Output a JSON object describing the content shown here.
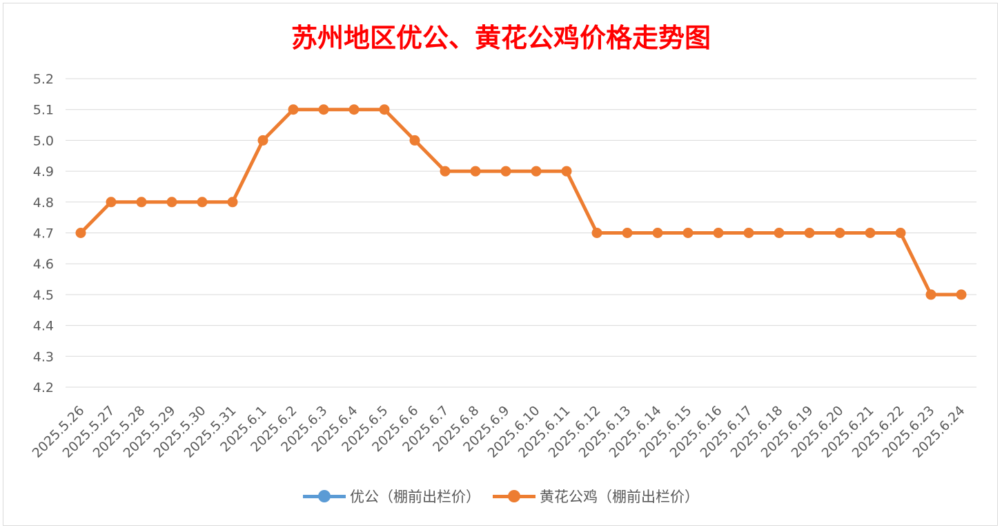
{
  "chart_data": {
    "type": "line",
    "title": "苏州地区优公、黄花公鸡价格走势图",
    "xlabel": "",
    "ylabel": "",
    "ylim": [
      4.2,
      5.2
    ],
    "yticks": [
      "5.2",
      "5.1",
      "5.0",
      "4.9",
      "4.8",
      "4.7",
      "4.6",
      "4.5",
      "4.4",
      "4.3",
      "4.2"
    ],
    "grid": true,
    "legend_position": "bottom",
    "categories": [
      "2025.5.26",
      "2025.5.27",
      "2025.5.28",
      "2025.5.29",
      "2025.5.30",
      "2025.5.31",
      "2025.6.1",
      "2025.6.2",
      "2025.6.3",
      "2025.6.4",
      "2025.6.5",
      "2025.6.6",
      "2025.6.7",
      "2025.6.8",
      "2025.6.9",
      "2025.6.10",
      "2025.6.11",
      "2025.6.12",
      "2025.6.13",
      "2025.6.14",
      "2025.6.15",
      "2025.6.16",
      "2025.6.17",
      "2025.6.18",
      "2025.6.19",
      "2025.6.20",
      "2025.6.21",
      "2025.6.22",
      "2025.6.23",
      "2025.6.24"
    ],
    "series": [
      {
        "name": "优公（棚前出栏价）",
        "color": "#5b9bd5",
        "values": [
          null,
          null,
          null,
          null,
          null,
          null,
          null,
          null,
          null,
          null,
          null,
          null,
          null,
          null,
          null,
          null,
          null,
          null,
          null,
          null,
          null,
          null,
          null,
          null,
          null,
          null,
          null,
          null,
          null,
          null
        ]
      },
      {
        "name": "黄花公鸡（棚前出栏价）",
        "color": "#ed7d31",
        "values": [
          4.7,
          4.8,
          4.8,
          4.8,
          4.8,
          4.8,
          5.0,
          5.1,
          5.1,
          5.1,
          5.1,
          5.0,
          4.9,
          4.9,
          4.9,
          4.9,
          4.9,
          4.7,
          4.7,
          4.7,
          4.7,
          4.7,
          4.7,
          4.7,
          4.7,
          4.7,
          4.7,
          4.7,
          4.5,
          4.5
        ]
      }
    ]
  }
}
